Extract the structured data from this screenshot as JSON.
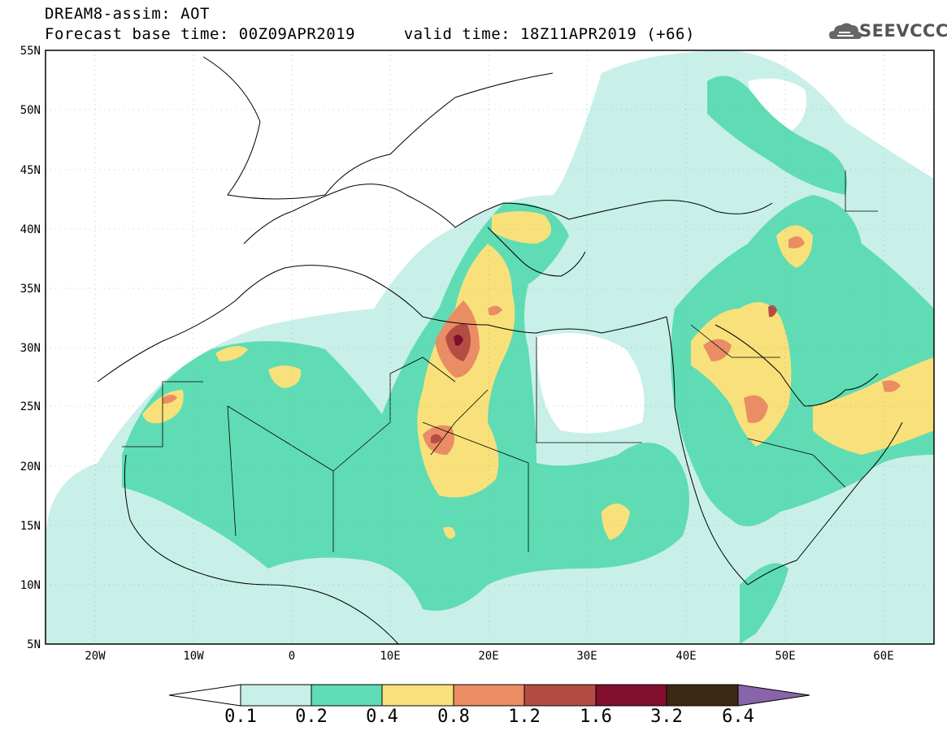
{
  "header": {
    "title_line1": "DREAM8-assim: AOT",
    "title_line2": "Forecast base time: 00Z09APR2019     valid time: 18Z11APR2019 (+66)",
    "logo_text": "SEEVCCC"
  },
  "map": {
    "lat_labels": [
      "55N",
      "50N",
      "45N",
      "40N",
      "35N",
      "30N",
      "25N",
      "20N",
      "15N",
      "10N",
      "5N"
    ],
    "lon_labels": [
      "20W",
      "10W",
      "0",
      "10E",
      "20E",
      "30E",
      "40E",
      "50E",
      "60E"
    ]
  },
  "colorbar": {
    "labels": [
      "0.1",
      "0.2",
      "0.4",
      "0.8",
      "1.2",
      "1.6",
      "3.2",
      "6.4"
    ],
    "colors": [
      "#c8f0e8",
      "#5fdcb4",
      "#f8e17a",
      "#ea8c64",
      "#b44c44",
      "#820e2e",
      "#3c2814",
      "#8864aa"
    ]
  },
  "colors": {
    "level1": "#c8f0e8",
    "level2": "#5fdcb4",
    "level3": "#f8e17a",
    "level4": "#ea8c64",
    "level5": "#b44c44",
    "level6": "#820e2e"
  }
}
